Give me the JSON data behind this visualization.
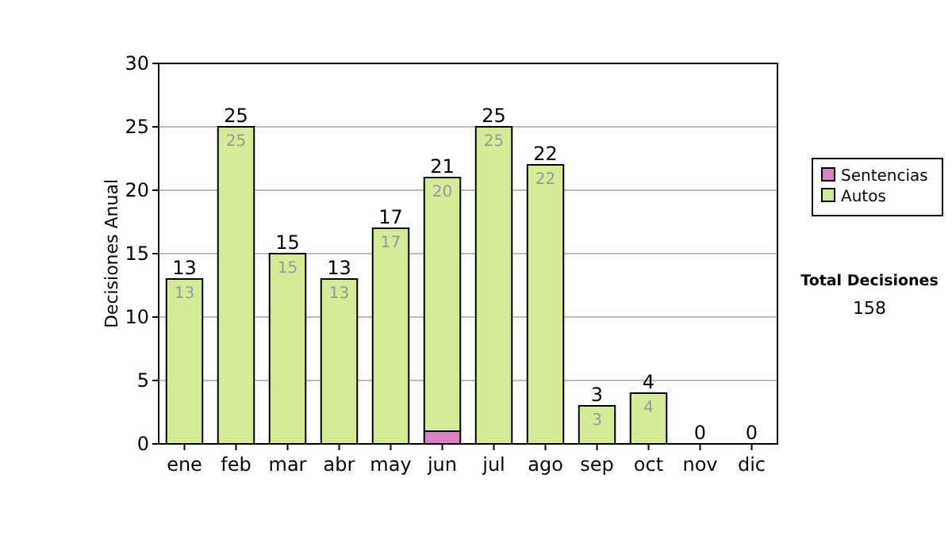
{
  "chart_data": {
    "type": "bar",
    "ylabel": "Decisiones Anual",
    "categories": [
      "ene",
      "feb",
      "mar",
      "abr",
      "may",
      "jun",
      "jul",
      "ago",
      "sep",
      "oct",
      "nov",
      "dic"
    ],
    "stacked": true,
    "series": [
      {
        "name": "Sentencias",
        "color": "#d982c6",
        "values": [
          0,
          0,
          0,
          0,
          0,
          1,
          0,
          0,
          0,
          0,
          0,
          0
        ]
      },
      {
        "name": "Autos",
        "color": "#d4eb97",
        "values": [
          13,
          25,
          15,
          13,
          17,
          20,
          25,
          22,
          3,
          4,
          0,
          0
        ],
        "value_labels": [
          "13",
          "25",
          "15",
          "13",
          "17",
          "20",
          "25",
          "22",
          "3",
          "4",
          null,
          null
        ]
      }
    ],
    "totals": [
      "13",
      "25",
      "15",
      "13",
      "17",
      "21",
      "25",
      "22",
      "3",
      "4",
      "0",
      "0"
    ],
    "ylim": [
      0,
      30
    ],
    "yticks": [
      0,
      5,
      10,
      15,
      20,
      25,
      30
    ],
    "grid": "y",
    "legend": "right",
    "annotations": [
      "Total Decisiones",
      "158"
    ]
  }
}
